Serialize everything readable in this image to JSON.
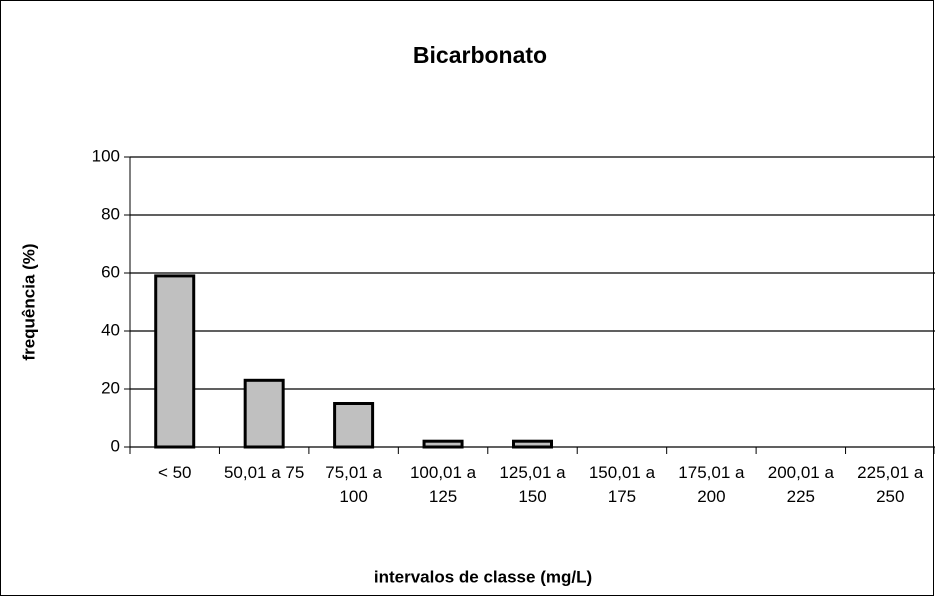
{
  "chart_data": {
    "type": "bar",
    "title": "Bicarbonato",
    "x_label": "intervalos de classe (mg/L)",
    "y_label": "frequência (%)",
    "categories": [
      "< 50",
      "50,01 a 75",
      "75,01 a 100",
      "100,01 a 125",
      "125,01 a 150",
      "150,01 a 175",
      "175,01 a 200",
      "200,01 a 225",
      "225,01 a 250"
    ],
    "values": [
      59,
      23,
      15,
      2,
      2,
      0,
      0,
      0,
      0
    ],
    "color": "#c0c0c0",
    "ylim": [
      0,
      100
    ],
    "yticks": [
      0,
      20,
      40,
      60,
      80,
      100
    ],
    "grid": true
  }
}
